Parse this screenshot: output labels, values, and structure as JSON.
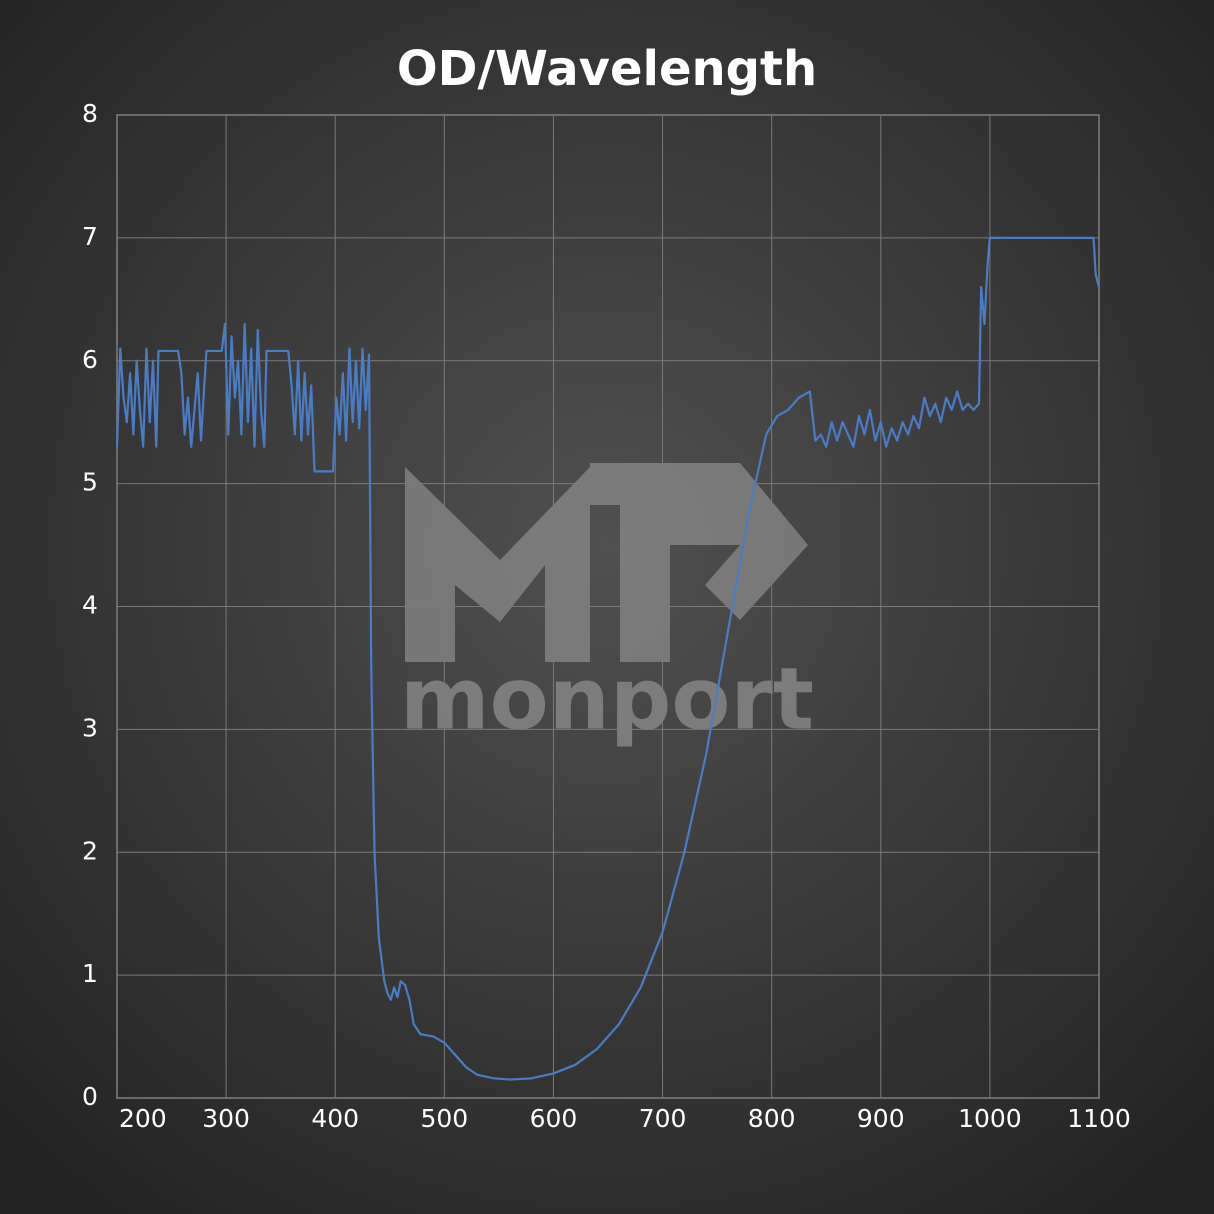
{
  "chart_data": {
    "type": "line",
    "title": "OD/Wavelength",
    "watermark": "monport",
    "color": "#4a7cc4",
    "grid": true,
    "xlim": [
      200,
      1100
    ],
    "xticks": [
      200,
      300,
      400,
      500,
      600,
      700,
      800,
      900,
      1000,
      1100
    ],
    "ylim": [
      0,
      8
    ],
    "yticks": [
      0,
      1,
      2,
      3,
      4,
      5,
      6,
      7,
      8
    ],
    "x": [
      200,
      203,
      206,
      209,
      212,
      215,
      218,
      221,
      224,
      227,
      230,
      233,
      236,
      238,
      256,
      259,
      262,
      265,
      268,
      271,
      274,
      277,
      280,
      282,
      296,
      299,
      302,
      305,
      308,
      311,
      314,
      317,
      320,
      323,
      326,
      329,
      332,
      335,
      337,
      357,
      360,
      363,
      366,
      369,
      372,
      375,
      378,
      381,
      398,
      401,
      404,
      407,
      410,
      413,
      416,
      419,
      422,
      425,
      428,
      431,
      433,
      436,
      440,
      445,
      448,
      451,
      454,
      457,
      460,
      464,
      468,
      472,
      478,
      490,
      500,
      510,
      520,
      530,
      545,
      560,
      580,
      600,
      620,
      640,
      660,
      680,
      700,
      720,
      740,
      760,
      780,
      795,
      805,
      815,
      825,
      835,
      840,
      845,
      850,
      855,
      860,
      865,
      870,
      875,
      880,
      885,
      890,
      895,
      900,
      905,
      910,
      915,
      920,
      925,
      930,
      935,
      940,
      945,
      950,
      955,
      960,
      965,
      970,
      975,
      980,
      985,
      990,
      992,
      995,
      998,
      1000,
      1095,
      1097,
      1100
    ],
    "values": [
      5.3,
      6.1,
      5.7,
      5.5,
      5.9,
      5.4,
      6.0,
      5.6,
      5.3,
      6.1,
      5.5,
      6.0,
      5.3,
      6.08,
      6.08,
      5.9,
      5.4,
      5.7,
      5.3,
      5.6,
      5.9,
      5.35,
      5.8,
      6.08,
      6.08,
      6.3,
      5.4,
      6.2,
      5.7,
      6.0,
      5.4,
      6.3,
      5.5,
      6.1,
      5.3,
      6.25,
      5.6,
      5.3,
      6.08,
      6.08,
      5.8,
      5.4,
      6.0,
      5.35,
      5.9,
      5.4,
      5.8,
      5.1,
      5.1,
      5.7,
      5.4,
      5.9,
      5.35,
      6.1,
      5.5,
      6.0,
      5.45,
      6.1,
      5.6,
      6.05,
      3.5,
      2.0,
      1.3,
      0.95,
      0.85,
      0.8,
      0.9,
      0.82,
      0.95,
      0.92,
      0.8,
      0.6,
      0.52,
      0.5,
      0.45,
      0.35,
      0.25,
      0.19,
      0.16,
      0.15,
      0.16,
      0.2,
      0.27,
      0.4,
      0.6,
      0.9,
      1.35,
      2.0,
      2.8,
      3.8,
      4.8,
      5.4,
      5.55,
      5.6,
      5.7,
      5.75,
      5.35,
      5.4,
      5.3,
      5.5,
      5.35,
      5.5,
      5.4,
      5.3,
      5.55,
      5.4,
      5.6,
      5.35,
      5.5,
      5.3,
      5.45,
      5.35,
      5.5,
      5.4,
      5.55,
      5.45,
      5.7,
      5.55,
      5.65,
      5.5,
      5.7,
      5.6,
      5.75,
      5.6,
      5.65,
      5.6,
      5.65,
      6.6,
      6.3,
      6.8,
      7.0,
      7.0,
      6.7,
      6.6
    ]
  }
}
